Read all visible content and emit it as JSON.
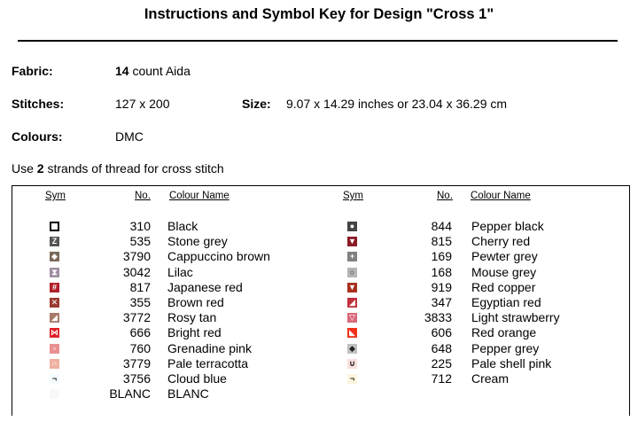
{
  "header": {
    "title": "Instructions and Symbol Key for Design \"Cross 1\""
  },
  "info": {
    "fabric_label": "Fabric:",
    "fabric_count": "14",
    "fabric_rest": " count Aida",
    "stitches_label": "Stitches:",
    "stitches_value": "127 x 200",
    "size_label": "Size:",
    "size_value": "9.07 x 14.29 inches or 23.04 x 36.29 cm",
    "colours_label": "Colours:",
    "colours_value": "DMC",
    "strands_pre": "Use ",
    "strands_num": "2",
    "strands_post": " strands of thread for cross stitch"
  },
  "table": {
    "headers": {
      "sym": "Sym",
      "no": "No.",
      "name": "Colour Name"
    },
    "left": [
      {
        "no": "310",
        "name": "Black",
        "color": "#000000",
        "icon": "hollow-square-icon"
      },
      {
        "no": "535",
        "name": "Stone grey",
        "color": "#555555",
        "icon": "letter-z-icon"
      },
      {
        "no": "3790",
        "name": "Cappuccino brown",
        "color": "#7a6a5a",
        "icon": "diamond-icon"
      },
      {
        "no": "3042",
        "name": "Lilac",
        "color": "#9e8ea0",
        "icon": "hourglass-icon"
      },
      {
        "no": "817",
        "name": "Japanese red",
        "color": "#b0202a",
        "icon": "hash-icon"
      },
      {
        "no": "355",
        "name": "Brown red",
        "color": "#9a3a30",
        "icon": "x-icon"
      },
      {
        "no": "3772",
        "name": "Rosy tan",
        "color": "#a87868",
        "icon": "triangle-corner-icon"
      },
      {
        "no": "666",
        "name": "Bright red",
        "color": "#e02028",
        "icon": "bowtie-icon"
      },
      {
        "no": "760",
        "name": "Grenadine pink",
        "color": "#e89090",
        "icon": "small-square-icon"
      },
      {
        "no": "3779",
        "name": "Pale terracotta",
        "color": "#f0b0a0",
        "icon": "arch-icon"
      },
      {
        "no": "3756",
        "name": "Cloud blue",
        "color": "#f4fbff",
        "icon": "corner-mark-icon"
      },
      {
        "no": "BLANC",
        "name": "BLANC",
        "color": "#f8f8f8",
        "icon": "blank-icon"
      }
    ],
    "right": [
      {
        "no": "844",
        "name": "Pepper black",
        "color": "#444444",
        "icon": "circle-icon"
      },
      {
        "no": "815",
        "name": "Cherry red",
        "color": "#8a1a24",
        "icon": "down-triangle-icon"
      },
      {
        "no": "169",
        "name": "Pewter grey",
        "color": "#808080",
        "icon": "plus-icon"
      },
      {
        "no": "168",
        "name": "Mouse grey",
        "color": "#b4b4b4",
        "icon": "ring-icon"
      },
      {
        "no": "919",
        "name": "Red copper",
        "color": "#a8301c",
        "icon": "down-triangle-icon"
      },
      {
        "no": "347",
        "name": "Egyptian red",
        "color": "#c0303a",
        "icon": "diagonal-icon"
      },
      {
        "no": "3833",
        "name": "Light strawberry",
        "color": "#d86878",
        "icon": "outline-triangle-icon"
      },
      {
        "no": "606",
        "name": "Red orange",
        "color": "#f03018",
        "icon": "corner-triangle-icon"
      },
      {
        "no": "648",
        "name": "Pepper grey",
        "color": "#c0c0c0",
        "icon": "diamond-icon"
      },
      {
        "no": "225",
        "name": "Pale shell pink",
        "color": "#f8e0dc",
        "icon": "cup-icon"
      },
      {
        "no": "712",
        "name": "Cream",
        "color": "#fcf4dc",
        "icon": "corner-mark-icon"
      }
    ]
  }
}
